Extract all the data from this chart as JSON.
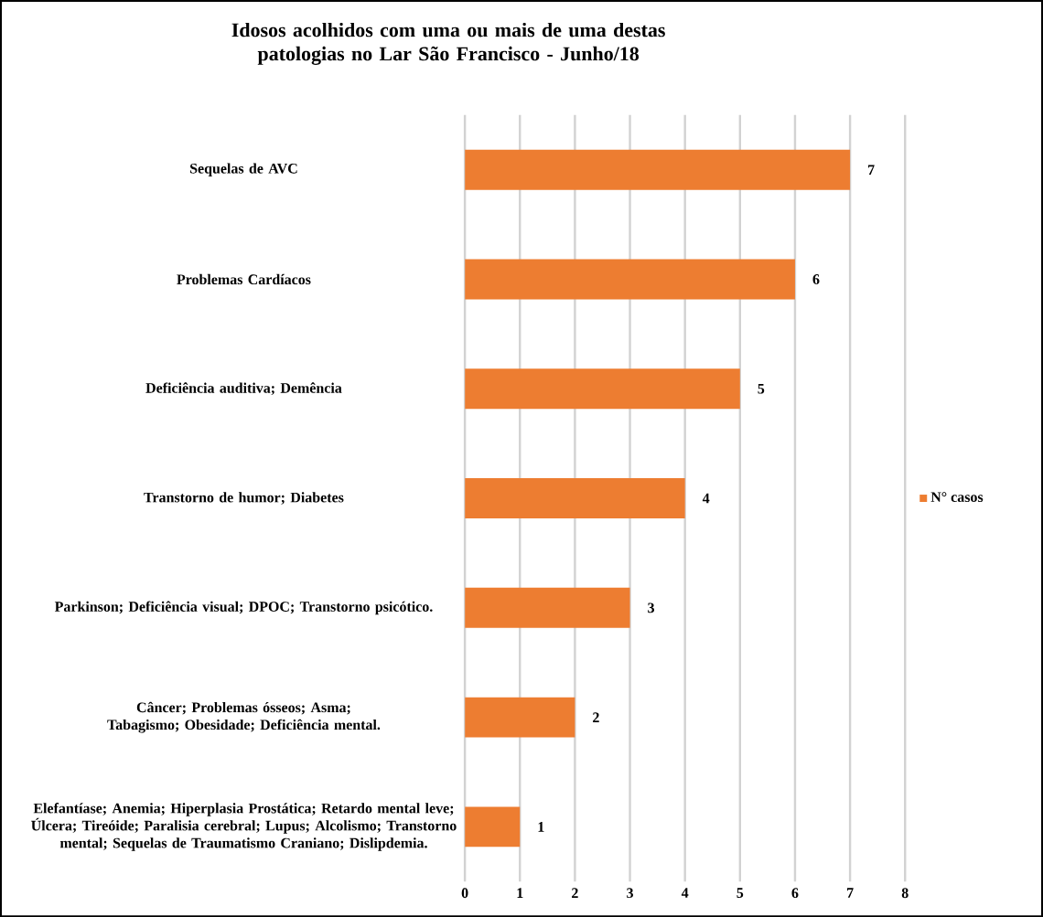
{
  "chart_data": {
    "type": "bar",
    "orientation": "horizontal",
    "title": "Idosos acolhidos com uma ou mais de uma destas patologias no Lar São Francisco - Junho/18",
    "categories": [
      "Sequelas de AVC",
      "Problemas Cardíacos",
      "Deficiência auditiva; Demência",
      "Transtorno de humor; Diabetes",
      "Parkinson; Deficiência visual; DPOC; Transtorno psicótico.",
      "Câncer; Problemas ósseos; Asma; Tabagismo; Obesidade; Deficiência mental.",
      "Elefantíase; Anemia; Hiperplasia Prostática; Retardo mental leve; Úlcera; Tireóide; Paralisia cerebral; Lupus; Alcolismo; Transtorno mental;  Sequelas de Traumatismo Craniano; Dislipdemia."
    ],
    "series": [
      {
        "name": "N° casos",
        "color": "#ed7d31",
        "values": [
          7,
          6,
          5,
          4,
          3,
          2,
          1
        ]
      }
    ],
    "xlim": [
      0,
      8
    ],
    "xticks": [
      0,
      1,
      2,
      3,
      4,
      5,
      6,
      7,
      8
    ],
    "grid": "x",
    "legend": "right",
    "data_labels": true
  }
}
